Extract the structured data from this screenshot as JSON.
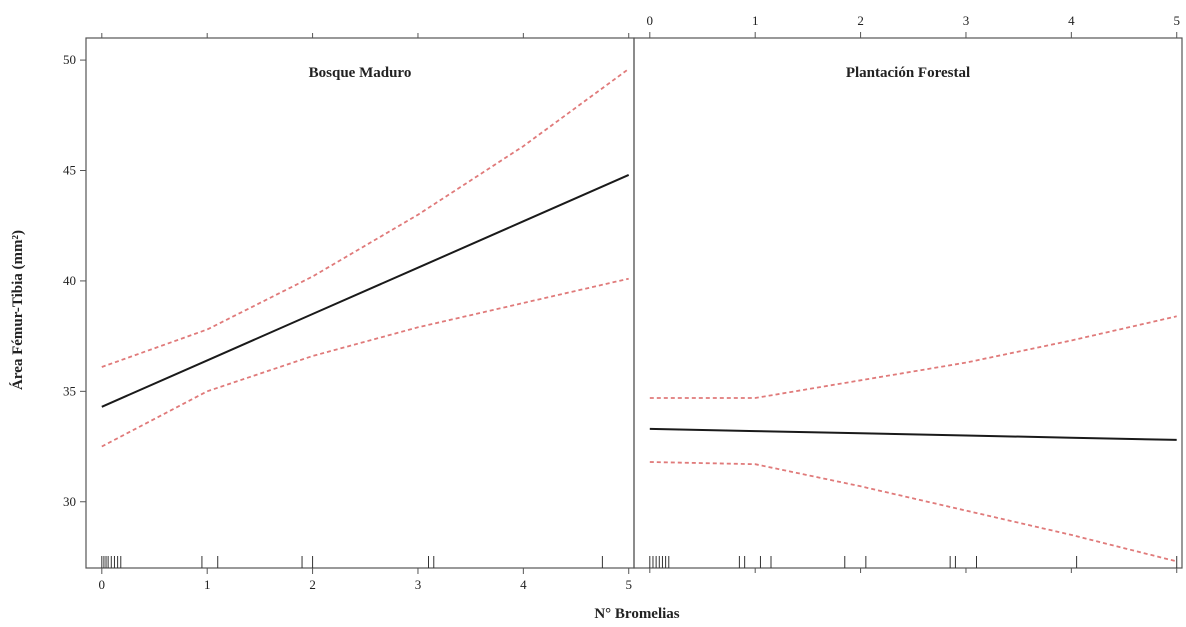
{
  "chart_data": {
    "type": "line",
    "xlabel": "N° Bromelias",
    "ylabel": "Área Fémur-Tibia (mm²)",
    "ylim": [
      27,
      51
    ],
    "yticks": [
      30,
      35,
      40,
      45,
      50
    ],
    "xlim": [
      -0.15,
      5.05
    ],
    "xticks": [
      0,
      1,
      2,
      3,
      4,
      5
    ],
    "grid": false,
    "line_styles": {
      "fit": {
        "color": "#1a1a1a",
        "style": "solid"
      },
      "ci": {
        "color": "#e07a7a",
        "style": "dashed"
      }
    },
    "panels": [
      {
        "title": "Bosque Maduro",
        "x": [
          0,
          1,
          2,
          3,
          4,
          5
        ],
        "series": [
          {
            "values": [
              34.3,
              36.4,
              38.5,
              40.6,
              42.7,
              44.8
            ]
          },
          {
            "values": [
              36.1,
              37.8,
              40.2,
              43.0,
              46.1,
              49.6
            ]
          },
          {
            "values": [
              32.5,
              35.0,
              36.6,
              37.9,
              39.0,
              40.1
            ]
          }
        ],
        "rug": [
          0,
          0.02,
          0.04,
          0.06,
          0.09,
          0.12,
          0.15,
          0.18,
          0.95,
          1.1,
          1.9,
          2.0,
          3.1,
          3.15,
          4.75
        ]
      },
      {
        "title": "Plantación Forestal",
        "x": [
          0,
          1,
          2,
          3,
          4,
          5
        ],
        "series": [
          {
            "values": [
              33.3,
              33.2,
              33.1,
              33.0,
              32.9,
              32.8
            ]
          },
          {
            "values": [
              34.7,
              34.7,
              35.5,
              36.3,
              37.3,
              38.4
            ]
          },
          {
            "values": [
              31.8,
              31.7,
              30.7,
              29.6,
              28.5,
              27.3
            ]
          }
        ],
        "rug": [
          0,
          0.03,
          0.06,
          0.09,
          0.12,
          0.15,
          0.18,
          0.85,
          0.9,
          1.05,
          1.15,
          1.85,
          2.05,
          2.85,
          2.9,
          3.1,
          4.05,
          5.0
        ]
      }
    ]
  }
}
